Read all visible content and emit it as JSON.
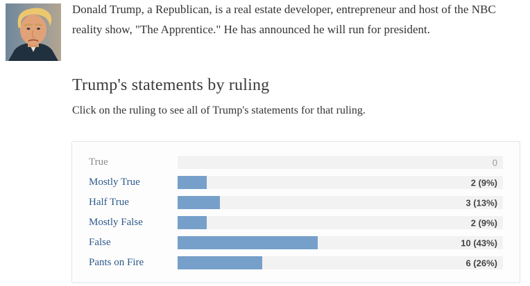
{
  "bio": {
    "text": "Donald Trump, a Republican, is a real estate developer, entrepreneur and host of the NBC reality show, \"The Apprentice.\" He has announced he will run for president.",
    "photo_subject": "Donald Trump headshot"
  },
  "section": {
    "heading": "Trump's statements by ruling",
    "subtitle": "Click on the ruling to see all of Trump's statements for that ruling."
  },
  "chart_data": {
    "type": "bar",
    "orientation": "horizontal",
    "title": "Trump's statements by ruling",
    "categories": [
      "True",
      "Mostly True",
      "Half True",
      "Mostly False",
      "False",
      "Pants on Fire"
    ],
    "counts": [
      0,
      2,
      3,
      2,
      10,
      6
    ],
    "percent_of_total": [
      0,
      9,
      13,
      9,
      43,
      26
    ],
    "value_labels": [
      "0",
      "2 (9%)",
      "3 (13%)",
      "2 (9%)",
      "10 (43%)",
      "6 (26%)"
    ],
    "clickable": [
      false,
      true,
      true,
      true,
      true,
      true
    ],
    "xlim": [
      0,
      100
    ],
    "grid": false,
    "legend_position": "none",
    "colors": {
      "bar": "#76a0ca",
      "track": "#f2f2f2",
      "link": "#2d5a8a",
      "disabled_label": "#8b8b8b",
      "value_text": "#444444",
      "zero_value_text": "#999999"
    }
  }
}
